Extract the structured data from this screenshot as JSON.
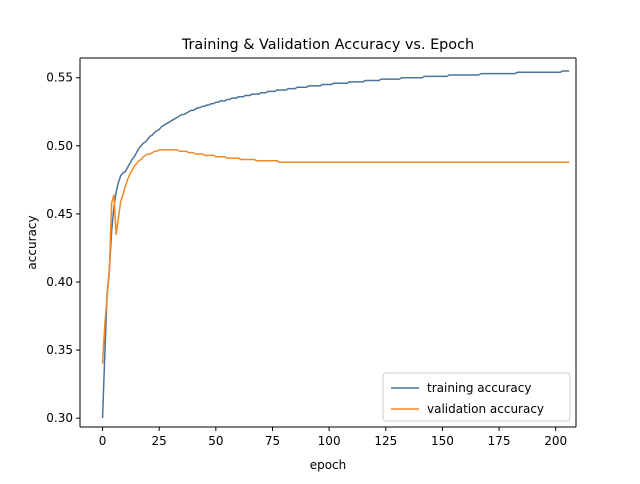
{
  "chart_data": {
    "type": "line",
    "title": "Training & Validation Accuracy vs. Epoch",
    "xlabel": "epoch",
    "ylabel": "accuracy",
    "xlim": [
      -9.95,
      208.95
    ],
    "ylim": [
      0.2935,
      0.5645
    ],
    "xticks": [
      0,
      25,
      50,
      75,
      100,
      125,
      150,
      175,
      200
    ],
    "yticks": [
      0.3,
      0.35,
      0.4,
      0.45,
      0.5,
      0.55
    ],
    "grid": false,
    "legend_position": "lower right",
    "series": [
      {
        "name": "training accuracy",
        "color": "#4c7399",
        "x_start": 0,
        "x_step": 1,
        "values": [
          0.3,
          0.347,
          0.391,
          0.409,
          0.437,
          0.455,
          0.466,
          0.473,
          0.478,
          0.48,
          0.481,
          0.484,
          0.487,
          0.49,
          0.492,
          0.495,
          0.498,
          0.5,
          0.502,
          0.503,
          0.505,
          0.507,
          0.508,
          0.51,
          0.511,
          0.512,
          0.514,
          0.515,
          0.516,
          0.517,
          0.518,
          0.519,
          0.52,
          0.521,
          0.522,
          0.523,
          0.523,
          0.524,
          0.525,
          0.526,
          0.526,
          0.527,
          0.528,
          0.528,
          0.529,
          0.529,
          0.53,
          0.53,
          0.531,
          0.531,
          0.532,
          0.532,
          0.533,
          0.533,
          0.533,
          0.534,
          0.534,
          0.535,
          0.535,
          0.535,
          0.536,
          0.536,
          0.536,
          0.537,
          0.537,
          0.537,
          0.538,
          0.538,
          0.538,
          0.538,
          0.539,
          0.539,
          0.539,
          0.54,
          0.54,
          0.54,
          0.54,
          0.541,
          0.541,
          0.541,
          0.541,
          0.541,
          0.542,
          0.542,
          0.542,
          0.542,
          0.543,
          0.543,
          0.543,
          0.543,
          0.543,
          0.544,
          0.544,
          0.544,
          0.544,
          0.544,
          0.544,
          0.545,
          0.545,
          0.545,
          0.545,
          0.545,
          0.546,
          0.546,
          0.546,
          0.546,
          0.546,
          0.546,
          0.546,
          0.547,
          0.547,
          0.547,
          0.547,
          0.547,
          0.547,
          0.547,
          0.548,
          0.548,
          0.548,
          0.548,
          0.548,
          0.548,
          0.548,
          0.549,
          0.549,
          0.549,
          0.549,
          0.549,
          0.549,
          0.549,
          0.549,
          0.549,
          0.55,
          0.55,
          0.55,
          0.55,
          0.55,
          0.55,
          0.55,
          0.55,
          0.55,
          0.55,
          0.551,
          0.551,
          0.551,
          0.551,
          0.551,
          0.551,
          0.551,
          0.551,
          0.551,
          0.551,
          0.551,
          0.552,
          0.552,
          0.552,
          0.552,
          0.552,
          0.552,
          0.552,
          0.552,
          0.552,
          0.552,
          0.552,
          0.552,
          0.552,
          0.552,
          0.553,
          0.553,
          0.553,
          0.553,
          0.553,
          0.553,
          0.553,
          0.553,
          0.553,
          0.553,
          0.553,
          0.553,
          0.553,
          0.553,
          0.553,
          0.553,
          0.554,
          0.554,
          0.554,
          0.554,
          0.554,
          0.554,
          0.554,
          0.554,
          0.554,
          0.554,
          0.554,
          0.554,
          0.554,
          0.554,
          0.554,
          0.554,
          0.554,
          0.554,
          0.554,
          0.554,
          0.555,
          0.555,
          0.555,
          0.555
        ]
      },
      {
        "name": "validation accuracy",
        "color": "#f0892b",
        "x_start": 0,
        "x_step": 1,
        "values": [
          0.34,
          0.369,
          0.389,
          0.407,
          0.458,
          0.464,
          0.435,
          0.447,
          0.459,
          0.464,
          0.47,
          0.475,
          0.479,
          0.482,
          0.485,
          0.487,
          0.489,
          0.49,
          0.492,
          0.493,
          0.494,
          0.494,
          0.495,
          0.496,
          0.496,
          0.497,
          0.497,
          0.497,
          0.497,
          0.497,
          0.497,
          0.497,
          0.497,
          0.497,
          0.496,
          0.496,
          0.496,
          0.496,
          0.495,
          0.495,
          0.495,
          0.494,
          0.494,
          0.494,
          0.494,
          0.493,
          0.493,
          0.493,
          0.493,
          0.493,
          0.492,
          0.492,
          0.492,
          0.492,
          0.492,
          0.491,
          0.491,
          0.491,
          0.491,
          0.491,
          0.491,
          0.49,
          0.49,
          0.49,
          0.49,
          0.49,
          0.49,
          0.49,
          0.489,
          0.489,
          0.489,
          0.489,
          0.489,
          0.489,
          0.489,
          0.489,
          0.489,
          0.489,
          0.488,
          0.488,
          0.488,
          0.488,
          0.488,
          0.488,
          0.488,
          0.488,
          0.488,
          0.488,
          0.488,
          0.488,
          0.488,
          0.488,
          0.488,
          0.488,
          0.488,
          0.488,
          0.488,
          0.488,
          0.488,
          0.488,
          0.488,
          0.488,
          0.488,
          0.488,
          0.488,
          0.488,
          0.488,
          0.488,
          0.488,
          0.488,
          0.488,
          0.488,
          0.488,
          0.488,
          0.488,
          0.488,
          0.488,
          0.488,
          0.488,
          0.488,
          0.488,
          0.488,
          0.488,
          0.488,
          0.488,
          0.488,
          0.488,
          0.488,
          0.488,
          0.488,
          0.488,
          0.488,
          0.488,
          0.488,
          0.488,
          0.488,
          0.488,
          0.488,
          0.488,
          0.488,
          0.488,
          0.488,
          0.488,
          0.488,
          0.488,
          0.488,
          0.488,
          0.488,
          0.488,
          0.488,
          0.488,
          0.488,
          0.488,
          0.488,
          0.488,
          0.488,
          0.488,
          0.488,
          0.488,
          0.488,
          0.488,
          0.488,
          0.488,
          0.488,
          0.488,
          0.488,
          0.488,
          0.488,
          0.488,
          0.488,
          0.488,
          0.488,
          0.488,
          0.488,
          0.488,
          0.488,
          0.488,
          0.488,
          0.488,
          0.488,
          0.488,
          0.488,
          0.488,
          0.488,
          0.488,
          0.488,
          0.488,
          0.488,
          0.488,
          0.488,
          0.488,
          0.488,
          0.488,
          0.488,
          0.488,
          0.488,
          0.488,
          0.488,
          0.488,
          0.488,
          0.488,
          0.488,
          0.488,
          0.488,
          0.488,
          0.488,
          0.488
        ]
      }
    ]
  }
}
